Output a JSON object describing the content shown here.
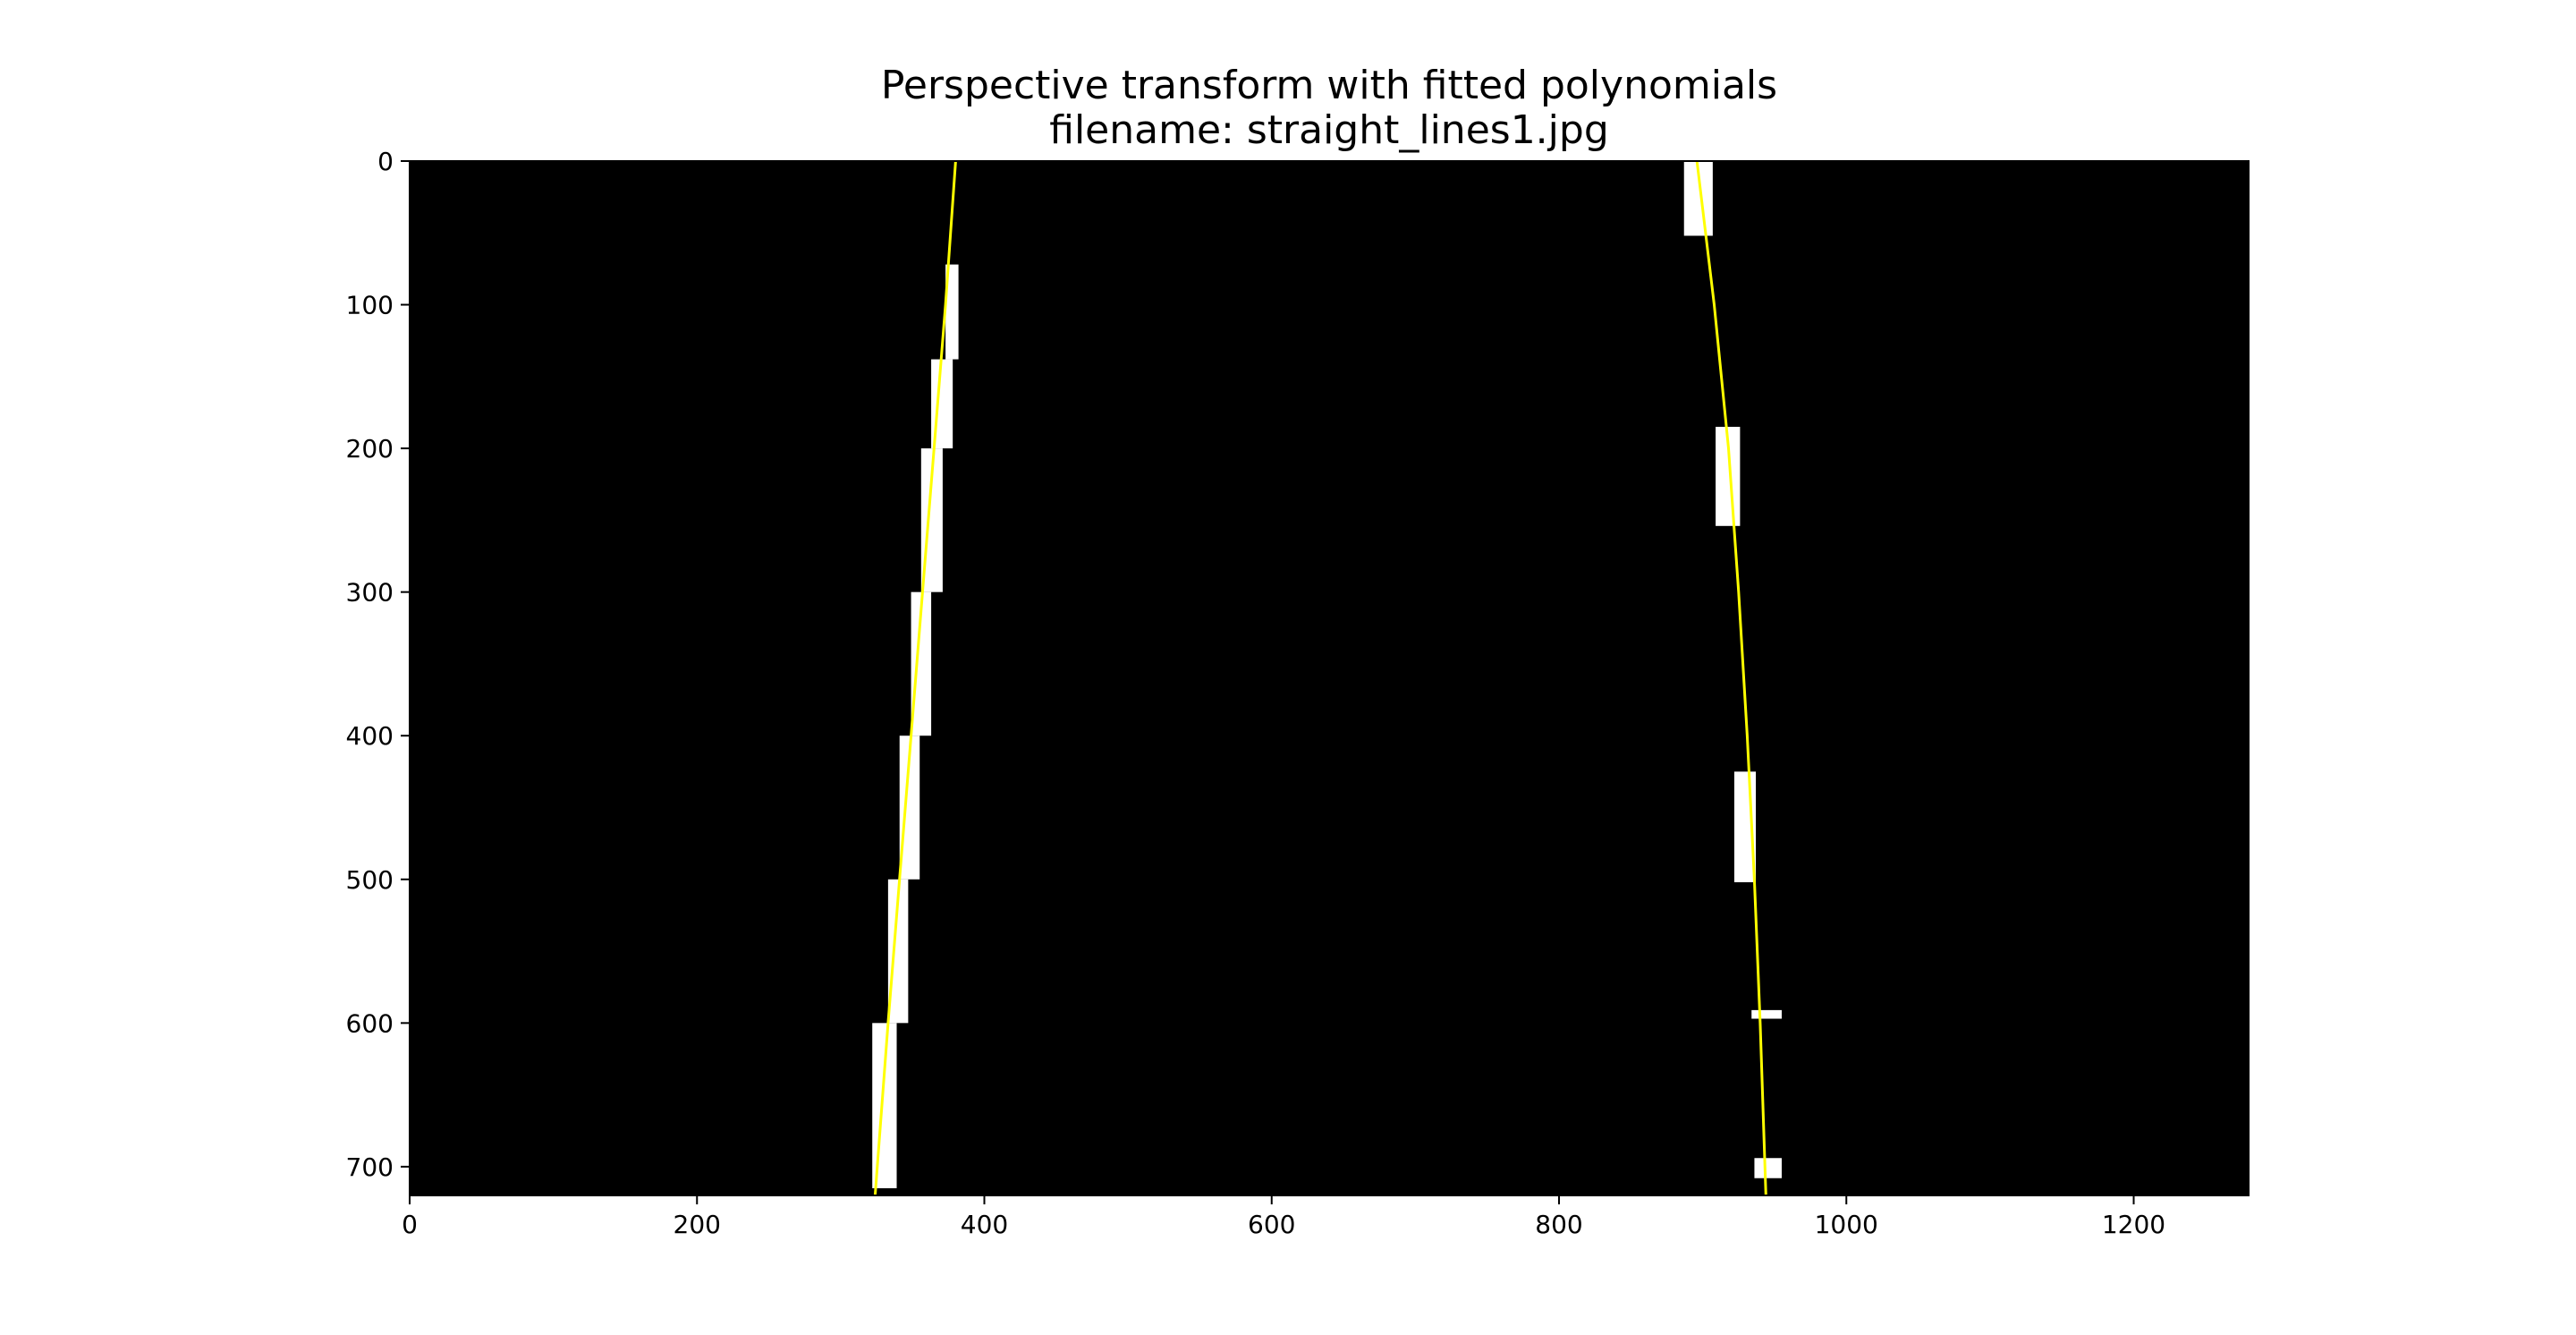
{
  "chart_data": {
    "type": "image",
    "title": "Perspective transform with fitted polynomials",
    "subtitle": "filename: straight_lines1.jpg",
    "xlabel": "",
    "ylabel": "",
    "xlim": [
      0,
      1280
    ],
    "ylim": [
      720,
      0
    ],
    "xticks": [
      "0",
      "200",
      "400",
      "600",
      "800",
      "1000",
      "1200"
    ],
    "yticks": [
      "0",
      "100",
      "200",
      "300",
      "400",
      "500",
      "600",
      "700"
    ],
    "grid": false,
    "background_color": "#000000",
    "fit_color": "#ffff00",
    "pixel_color": "#ffffff",
    "series": [
      {
        "x": [
          380,
          373,
          365,
          357,
          349,
          341,
          333,
          324
        ],
        "y": [
          0,
          100,
          200,
          300,
          400,
          500,
          600,
          720
        ]
      },
      {
        "x": [
          896,
          908,
          918,
          925,
          931,
          936,
          940,
          944
        ],
        "y": [
          0,
          100,
          200,
          300,
          400,
          500,
          600,
          720
        ]
      }
    ],
    "lane_pixel_regions": [
      {
        "x": [
          373,
          382
        ],
        "y": [
          72,
          138
        ]
      },
      {
        "x": [
          363,
          378
        ],
        "y": [
          138,
          200
        ]
      },
      {
        "x": [
          356,
          371
        ],
        "y": [
          200,
          300
        ]
      },
      {
        "x": [
          349,
          363
        ],
        "y": [
          300,
          400
        ]
      },
      {
        "x": [
          341,
          355
        ],
        "y": [
          400,
          500
        ]
      },
      {
        "x": [
          333,
          347
        ],
        "y": [
          500,
          600
        ]
      },
      {
        "x": [
          322,
          339
        ],
        "y": [
          600,
          715
        ]
      },
      {
        "x": [
          887,
          907
        ],
        "y": [
          0,
          52
        ]
      },
      {
        "x": [
          909,
          926
        ],
        "y": [
          185,
          254
        ]
      },
      {
        "x": [
          922,
          937
        ],
        "y": [
          425,
          502
        ]
      },
      {
        "x": [
          934,
          955
        ],
        "y": [
          591,
          597
        ]
      },
      {
        "x": [
          936,
          955
        ],
        "y": [
          694,
          708
        ]
      }
    ]
  }
}
